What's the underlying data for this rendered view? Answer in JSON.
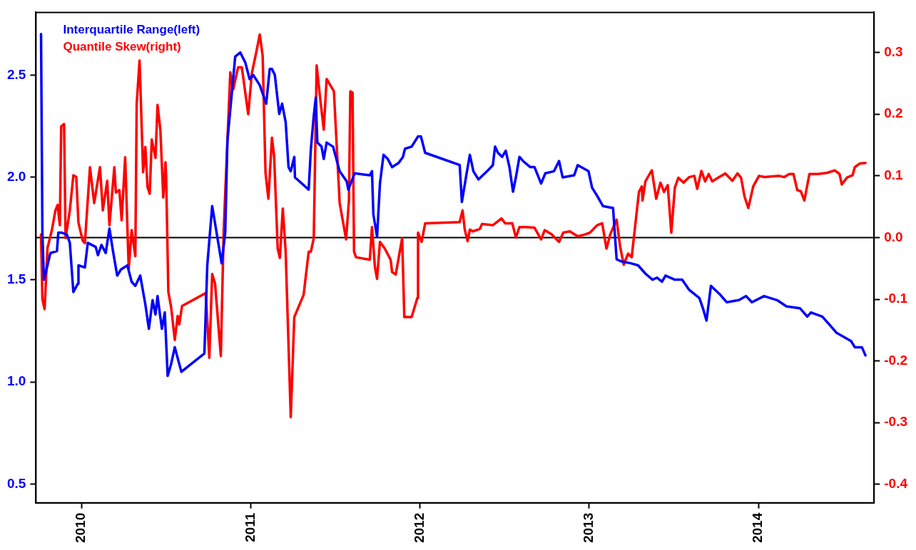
{
  "chart_data": {
    "type": "line",
    "xlim": [
      2009.732,
      2014.683
    ],
    "xticks": [
      2010,
      2011,
      2012,
      2013,
      2014
    ],
    "ylim": [
      0.41,
      2.806
    ],
    "yticks": [
      0.5,
      {
        "value": 1,
        "label": "1.0"
      },
      1.5,
      {
        "value": 2,
        "label": "2.0"
      },
      2.5
    ],
    "y2lim": [
      -0.43,
      0.365
    ],
    "y2ticks": [
      -0.4,
      -0.3,
      -0.2,
      -0.1,
      {
        "value": 0,
        "label": "0.0"
      },
      0.1,
      0.2,
      0.3
    ],
    "grid": false,
    "legend": "top left",
    "line_style": "solid",
    "ref_lines": [
      {
        "axis": "y2",
        "value": 0.0,
        "color": "#000000"
      }
    ],
    "series": [
      {
        "name": "Interquartile Range(left)",
        "color": "#0000ff",
        "axis": "y",
        "x": [
          2009.762,
          2009.77,
          2009.779,
          2009.8,
          2009.817,
          2009.856,
          2009.864,
          2009.885,
          2009.915,
          2009.932,
          2009.945,
          2009.953,
          2009.979,
          2009.983,
          2010.021,
          2010.038,
          2010.085,
          2010.098,
          2010.119,
          2010.144,
          2010.166,
          2010.187,
          2010.212,
          2010.234,
          2010.272,
          2010.297,
          2010.319,
          2010.348,
          2010.378,
          2010.399,
          2010.421,
          2010.438,
          2010.45,
          2010.476,
          2010.493,
          2010.51,
          2010.531,
          2010.552,
          2010.578,
          2010.591,
          2010.727,
          2010.744,
          2010.773,
          2010.829,
          2010.85,
          2010.863,
          2010.909,
          2010.939,
          2010.969,
          2010.994,
          2011.016,
          2011.054,
          2011.092,
          2011.113,
          2011.126,
          2011.143,
          2011.169,
          2011.186,
          2011.207,
          2011.224,
          2011.237,
          2011.258,
          2011.262,
          2011.343,
          2011.356,
          2011.373,
          2011.385,
          2011.394,
          2011.419,
          2011.432,
          2011.449,
          2011.487,
          2011.526,
          2011.568,
          2011.577,
          2011.615,
          2011.704,
          2011.717,
          2011.725,
          2011.747,
          2011.764,
          2011.785,
          2011.81,
          2011.836,
          2011.874,
          2011.9,
          2011.912,
          2011.951,
          2011.989,
          2012.006,
          2012.031,
          2012.235,
          2012.248,
          2012.274,
          2012.295,
          2012.316,
          2012.346,
          2012.397,
          2012.431,
          2012.444,
          2012.461,
          2012.486,
          2012.507,
          2012.529,
          2012.55,
          2012.567,
          2012.588,
          2012.609,
          2012.652,
          2012.677,
          2012.716,
          2012.741,
          2012.792,
          2012.822,
          2012.843,
          2012.911,
          2012.932,
          2012.996,
          2013.017,
          2013.047,
          2013.081,
          2013.141,
          2013.162,
          2013.187,
          2013.247,
          2013.289,
          2013.332,
          2013.374,
          2013.4,
          2013.43,
          2013.451,
          2013.506,
          2013.549,
          2013.591,
          2013.651,
          2013.672,
          2013.693,
          2013.719,
          2013.77,
          2013.812,
          2013.884,
          2013.927,
          2013.961,
          2014.033,
          2014.11,
          2014.165,
          2014.246,
          2014.288,
          2014.31,
          2014.377,
          2014.42,
          2014.462,
          2014.547,
          2014.569,
          2014.611,
          2014.632
        ],
        "values": [
          2.7,
          1.73,
          1.5,
          1.57,
          1.63,
          1.64,
          1.73,
          1.73,
          1.72,
          1.68,
          1.53,
          1.44,
          1.48,
          1.57,
          1.56,
          1.68,
          1.66,
          1.62,
          1.67,
          1.63,
          1.75,
          1.64,
          1.52,
          1.55,
          1.57,
          1.49,
          1.47,
          1.52,
          1.38,
          1.26,
          1.4,
          1.33,
          1.42,
          1.26,
          1.34,
          1.03,
          1.09,
          1.17,
          1.09,
          1.05,
          1.14,
          1.57,
          1.86,
          1.58,
          1.73,
          2.18,
          2.59,
          2.61,
          2.56,
          2.48,
          2.5,
          2.45,
          2.36,
          2.53,
          2.53,
          2.5,
          2.31,
          2.36,
          2.27,
          2.05,
          2.03,
          2.1,
          2.0,
          1.94,
          2.14,
          2.3,
          2.39,
          2.17,
          2.15,
          2.09,
          2.17,
          2.15,
          2.03,
          1.98,
          1.94,
          2.02,
          2.01,
          2.03,
          1.82,
          1.71,
          1.97,
          2.11,
          2.09,
          2.05,
          2.07,
          2.1,
          2.14,
          2.15,
          2.2,
          2.2,
          2.12,
          2.06,
          1.88,
          2.01,
          2.11,
          2.03,
          1.99,
          2.03,
          2.06,
          2.15,
          2.12,
          2.1,
          2.13,
          2.05,
          1.93,
          2.0,
          2.1,
          2.08,
          2.05,
          2.05,
          1.97,
          2.02,
          2.03,
          2.08,
          2.0,
          2.01,
          2.06,
          2.03,
          1.95,
          1.91,
          1.86,
          1.85,
          1.6,
          1.59,
          1.58,
          1.57,
          1.53,
          1.5,
          1.51,
          1.49,
          1.52,
          1.5,
          1.5,
          1.45,
          1.41,
          1.36,
          1.3,
          1.47,
          1.43,
          1.39,
          1.4,
          1.42,
          1.39,
          1.42,
          1.4,
          1.37,
          1.36,
          1.32,
          1.34,
          1.32,
          1.28,
          1.24,
          1.2,
          1.17,
          1.17,
          1.13
        ]
      },
      {
        "name": "Quantile Skew(right)",
        "color": "#ff0000",
        "axis": "y2",
        "x": [
          2009.762,
          2009.77,
          2009.783,
          2009.8,
          2009.826,
          2009.847,
          2009.86,
          2009.873,
          2009.881,
          2009.898,
          2009.907,
          2009.932,
          2009.953,
          2009.97,
          2009.983,
          2010.008,
          2010.021,
          2010.051,
          2010.076,
          2010.11,
          2010.127,
          2010.153,
          2010.166,
          2010.195,
          2010.204,
          2010.225,
          2010.238,
          2010.259,
          2010.28,
          2010.297,
          2010.319,
          2010.327,
          2010.344,
          2010.365,
          2010.378,
          2010.391,
          2010.404,
          2010.416,
          2010.438,
          2010.45,
          2010.467,
          2010.484,
          2010.497,
          2010.501,
          2010.514,
          2010.531,
          2010.552,
          2010.569,
          2010.578,
          2010.595,
          2010.735,
          2010.756,
          2010.773,
          2010.79,
          2010.824,
          2010.841,
          2010.88,
          2010.897,
          2010.926,
          2010.948,
          2010.986,
          2011.007,
          2011.033,
          2011.054,
          2011.071,
          2011.088,
          2011.105,
          2011.126,
          2011.139,
          2011.16,
          2011.173,
          2011.19,
          2011.207,
          2011.237,
          2011.258,
          2011.313,
          2011.343,
          2011.356,
          2011.373,
          2011.39,
          2011.407,
          2011.432,
          2011.449,
          2011.492,
          2011.526,
          2011.564,
          2011.581,
          2011.589,
          2011.602,
          2011.611,
          2011.623,
          2011.704,
          2011.717,
          2011.734,
          2011.747,
          2011.764,
          2011.793,
          2011.827,
          2011.836,
          2011.857,
          2011.895,
          2011.908,
          2011.951,
          2011.985,
          2011.989,
          2012.01,
          2012.031,
          2012.235,
          2012.252,
          2012.265,
          2012.282,
          2012.295,
          2012.312,
          2012.354,
          2012.367,
          2012.431,
          2012.482,
          2012.503,
          2012.546,
          2012.567,
          2012.588,
          2012.622,
          2012.677,
          2012.716,
          2012.737,
          2012.779,
          2012.822,
          2012.847,
          2012.886,
          2012.932,
          2012.975,
          2013.005,
          2013.047,
          2013.077,
          2013.102,
          2013.124,
          2013.162,
          2013.183,
          2013.204,
          2013.23,
          2013.251,
          2013.272,
          2013.294,
          2013.311,
          2013.315,
          2013.332,
          2013.357,
          2013.37,
          2013.396,
          2013.421,
          2013.442,
          2013.464,
          2013.485,
          2013.506,
          2013.527,
          2013.557,
          2013.591,
          2013.621,
          2013.638,
          2013.663,
          2013.685,
          2013.706,
          2013.727,
          2013.761,
          2013.804,
          2013.846,
          2013.876,
          2013.897,
          2013.918,
          2013.94,
          2013.969,
          2014.003,
          2014.037,
          2014.122,
          2014.152,
          2014.182,
          2014.207,
          2014.229,
          2014.25,
          2014.271,
          2014.301,
          2014.352,
          2014.407,
          2014.45,
          2014.479,
          2014.492,
          2014.522,
          2014.556,
          2014.569,
          2014.598,
          2014.632
        ],
        "values": [
          0.005,
          -0.1,
          -0.116,
          -0.017,
          0.012,
          0.044,
          0.053,
          0.02,
          0.18,
          0.184,
          -0.001,
          0.044,
          0.101,
          0.098,
          0.024,
          -0.005,
          -0.009,
          0.114,
          0.056,
          0.114,
          0.044,
          0.092,
          0.02,
          0.114,
          0.073,
          0.077,
          0.028,
          0.13,
          -0.051,
          0.012,
          -0.03,
          0.217,
          0.287,
          0.106,
          0.147,
          0.082,
          0.071,
          0.159,
          0.129,
          0.215,
          0.174,
          0.065,
          0.122,
          0.098,
          -0.088,
          -0.114,
          -0.166,
          -0.127,
          -0.141,
          -0.111,
          -0.09,
          -0.195,
          -0.059,
          -0.075,
          -0.192,
          0.012,
          0.268,
          0.24,
          0.276,
          0.276,
          0.2,
          0.266,
          0.3,
          0.329,
          0.295,
          0.105,
          0.063,
          0.162,
          0.131,
          -0.018,
          -0.033,
          0.047,
          -0.023,
          -0.291,
          -0.129,
          -0.093,
          -0.023,
          -0.023,
          -0.001,
          0.279,
          0.235,
          0.175,
          0.257,
          0.237,
          0.056,
          -0.003,
          0.061,
          0.237,
          0.235,
          -0.023,
          -0.032,
          -0.036,
          0.017,
          -0.047,
          -0.067,
          -0.007,
          -0.018,
          -0.036,
          -0.056,
          -0.06,
          -0.001,
          -0.129,
          -0.129,
          -0.098,
          0.008,
          -0.007,
          0.023,
          0.025,
          0.044,
          0.013,
          -0.006,
          0.013,
          0.01,
          0.014,
          0.022,
          0.02,
          0.031,
          0.023,
          0.023,
          0.0,
          0.017,
          0.017,
          0.016,
          -0.003,
          0.012,
          0.005,
          -0.007,
          0.008,
          0.01,
          0.002,
          0.005,
          0.008,
          0.02,
          0.023,
          -0.018,
          0.005,
          0.029,
          -0.015,
          -0.044,
          -0.026,
          -0.032,
          0.02,
          0.074,
          0.083,
          0.06,
          0.091,
          0.103,
          0.109,
          0.063,
          0.089,
          0.074,
          0.085,
          0.008,
          0.081,
          0.097,
          0.089,
          0.098,
          0.1,
          0.079,
          0.108,
          0.091,
          0.103,
          0.091,
          0.097,
          0.104,
          0.092,
          0.104,
          0.097,
          0.066,
          0.048,
          0.083,
          0.1,
          0.098,
          0.1,
          0.098,
          0.103,
          0.103,
          0.077,
          0.075,
          0.06,
          0.103,
          0.103,
          0.105,
          0.109,
          0.103,
          0.086,
          0.097,
          0.101,
          0.114,
          0.12,
          0.121
        ]
      }
    ]
  }
}
